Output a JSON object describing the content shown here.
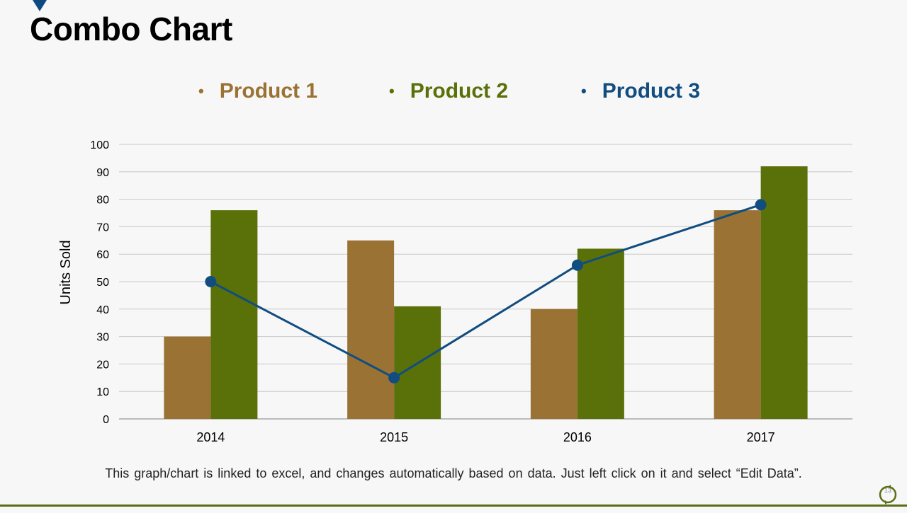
{
  "slide": {
    "title": "Combo Chart",
    "footnote": "This graph/chart is linked to excel, and changes automatically based on data. Just left click on it and select “Edit Data”.",
    "page_number": "13"
  },
  "colors": {
    "product1": "#9a7233",
    "product2": "#5a7009",
    "product3": "#114d80",
    "accent": "#0e4a82",
    "rule": "#5a6e17"
  },
  "chart_data": {
    "type": "bar",
    "title": "",
    "xlabel": "",
    "ylabel": "Units Sold",
    "ylim": [
      0,
      100
    ],
    "yticks": [
      0,
      10,
      20,
      30,
      40,
      50,
      60,
      70,
      80,
      90,
      100
    ],
    "grid": true,
    "legend_position": "top",
    "categories": [
      "2014",
      "2015",
      "2016",
      "2017"
    ],
    "series": [
      {
        "name": "Product 1",
        "type": "bar",
        "values": [
          30,
          65,
          40,
          76
        ]
      },
      {
        "name": "Product 2",
        "type": "bar",
        "values": [
          76,
          41,
          62,
          92
        ]
      },
      {
        "name": "Product 3",
        "type": "line",
        "values": [
          50,
          15,
          56,
          78
        ]
      }
    ]
  }
}
